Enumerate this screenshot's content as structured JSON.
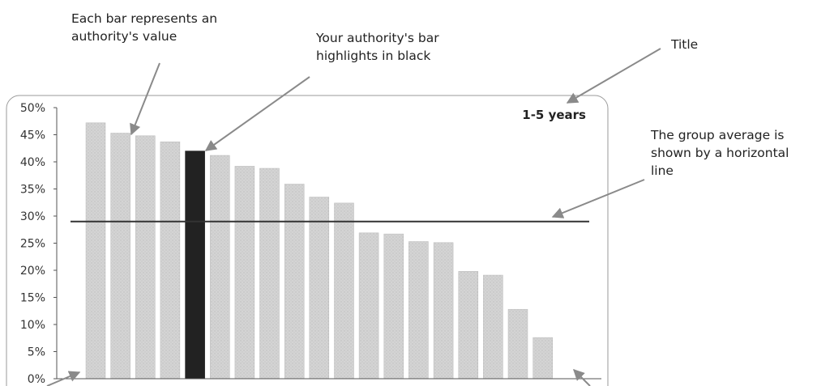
{
  "annotations": {
    "bars_note_line1": "Each bar represents an",
    "bars_note_line2": "authority's value",
    "highlight_note_line1": "Your authority's bar",
    "highlight_note_line2": "highlights in black",
    "title_note": "Title",
    "average_note_line1": "The group average is",
    "average_note_line2": "shown by a horizontal",
    "average_note_line3": "line"
  },
  "colors": {
    "bar": "#cfcfcf",
    "highlight_bar": "#222222",
    "average_line": "#333333",
    "arrow": "#8a8a8a",
    "frame": "#999999"
  },
  "chart_data": {
    "type": "bar",
    "title": "1-5 years",
    "xlabel": "",
    "ylabel": "",
    "ylim": [
      0,
      50
    ],
    "y_ticks": [
      "0%",
      "5%",
      "10%",
      "15%",
      "20%",
      "25%",
      "30%",
      "35%",
      "40%",
      "45%",
      "50%"
    ],
    "values": [
      47.2,
      45.3,
      44.8,
      43.7,
      42.0,
      41.2,
      39.2,
      38.8,
      35.9,
      33.5,
      32.4,
      26.9,
      26.7,
      25.3,
      25.1,
      19.8,
      19.1,
      12.8,
      7.6
    ],
    "highlight_index": 4,
    "group_average": 29.0,
    "grid": false,
    "legend": "none"
  }
}
